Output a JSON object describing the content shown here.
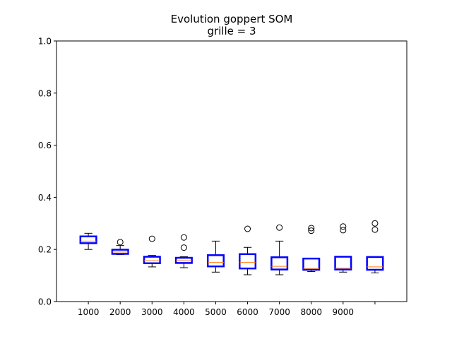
{
  "chart_data": {
    "type": "box",
    "title": "Evolution goppert SOM",
    "subtitle": "grille = 3",
    "xlabel": "",
    "ylabel": "",
    "ylim": [
      0.0,
      1.0
    ],
    "yticks": [
      "0.0",
      "0.2",
      "0.4",
      "0.6",
      "0.8",
      "1.0"
    ],
    "xticks": [
      "1000",
      "2000",
      "3000",
      "4000",
      "5000",
      "6000",
      "7000",
      "8000",
      "9000"
    ],
    "grid": false,
    "colors": {
      "box": "#0000ff",
      "median": "#ff7f0e",
      "whisker": "#000000",
      "flier": "#000000"
    },
    "boxes": [
      {
        "whislo": 0.2,
        "q1": 0.224,
        "med": 0.232,
        "q3": 0.25,
        "whishi": 0.262,
        "fliers": []
      },
      {
        "whislo": 0.18,
        "q1": 0.183,
        "med": 0.19,
        "q3": 0.199,
        "whishi": 0.215,
        "fliers": [
          0.228
        ]
      },
      {
        "whislo": 0.133,
        "q1": 0.147,
        "med": 0.157,
        "q3": 0.172,
        "whishi": 0.177,
        "fliers": [
          0.241
        ]
      },
      {
        "whislo": 0.13,
        "q1": 0.148,
        "med": 0.157,
        "q3": 0.168,
        "whishi": 0.172,
        "fliers": [
          0.207,
          0.246
        ]
      },
      {
        "whislo": 0.113,
        "q1": 0.135,
        "med": 0.15,
        "q3": 0.178,
        "whishi": 0.232,
        "fliers": []
      },
      {
        "whislo": 0.103,
        "q1": 0.127,
        "med": 0.15,
        "q3": 0.182,
        "whishi": 0.208,
        "fliers": [
          0.279
        ]
      },
      {
        "whislo": 0.103,
        "q1": 0.123,
        "med": 0.135,
        "q3": 0.17,
        "whishi": 0.232,
        "fliers": [
          0.284
        ]
      },
      {
        "whislo": 0.115,
        "q1": 0.122,
        "med": 0.127,
        "q3": 0.165,
        "whishi": 0.165,
        "fliers": [
          0.272,
          0.282
        ]
      },
      {
        "whislo": 0.113,
        "q1": 0.123,
        "med": 0.128,
        "q3": 0.172,
        "whishi": 0.172,
        "fliers": [
          0.274,
          0.288
        ]
      },
      {
        "whislo": 0.11,
        "q1": 0.122,
        "med": 0.133,
        "q3": 0.171,
        "whishi": 0.172,
        "fliers": [
          0.276,
          0.3
        ]
      }
    ]
  }
}
